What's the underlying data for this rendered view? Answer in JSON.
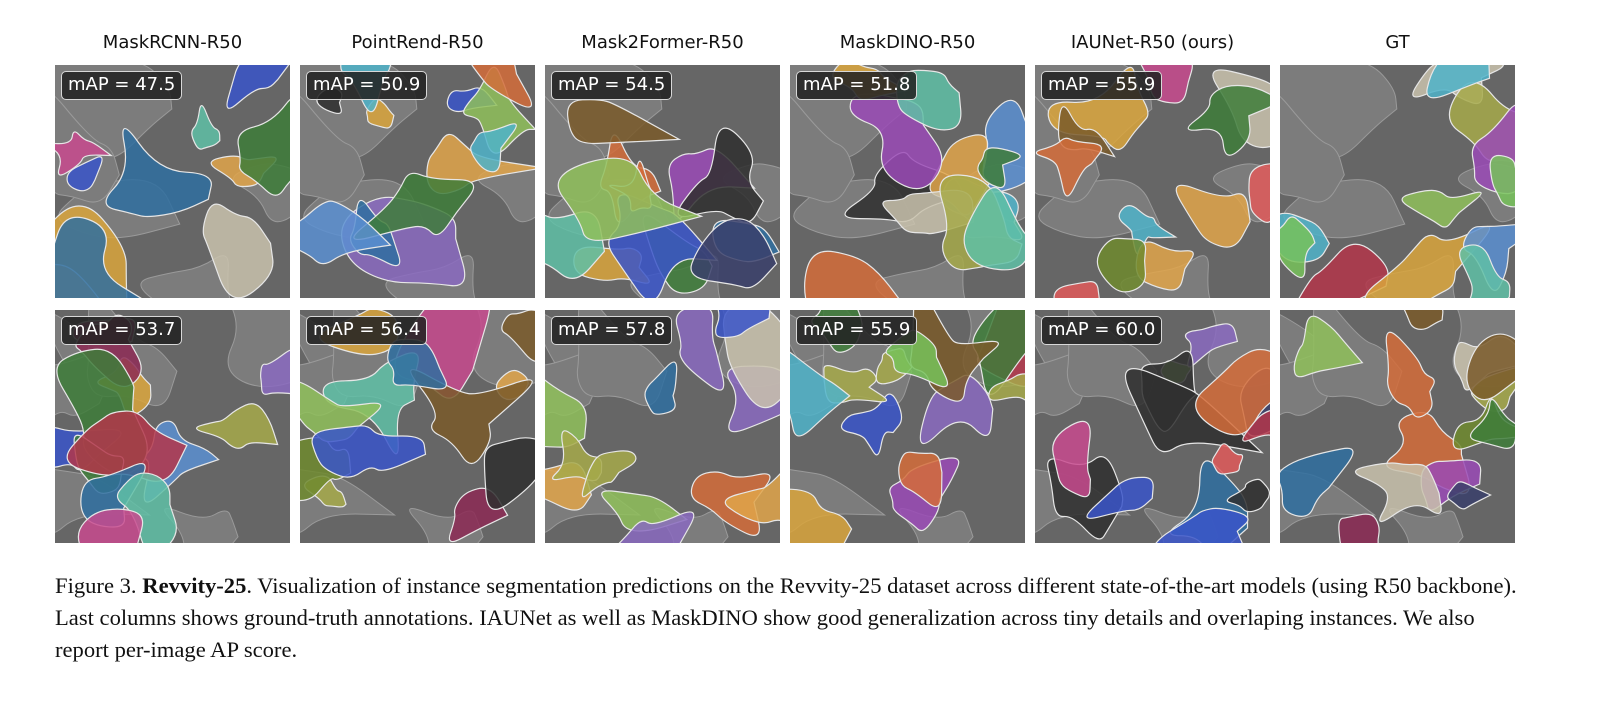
{
  "figure": {
    "columns": [
      {
        "title": "MaskRCNN-R50",
        "scores": [
          "mAP = 47.5",
          "mAP = 53.7"
        ]
      },
      {
        "title": "PointRend-R50",
        "scores": [
          "mAP = 50.9",
          "mAP = 56.4"
        ]
      },
      {
        "title": "Mask2Former-R50",
        "scores": [
          "mAP = 54.5",
          "mAP = 57.8"
        ]
      },
      {
        "title": "MaskDINO-R50",
        "scores": [
          "mAP = 51.8",
          "mAP = 55.9"
        ]
      },
      {
        "title": "IAUNet-R50 (ours)",
        "scores": [
          "mAP = 55.9",
          "mAP = 60.0"
        ]
      },
      {
        "title": "GT",
        "scores": []
      }
    ],
    "palette": [
      "#8fbf5a",
      "#d9a53c",
      "#3a55c9",
      "#e0a44a",
      "#5fc0a6",
      "#c9c2ad",
      "#c84a8e",
      "#8c2a55",
      "#2f6fa0",
      "#6f8a2e",
      "#9a4ab6",
      "#4fb3c9",
      "#3e7d3a",
      "#b3364a",
      "#7a5a2a",
      "#3a3f6b",
      "#d46c3a",
      "#a6a94a",
      "#5a8fd1",
      "#2f2f2f",
      "#e05a5a",
      "#77c25a",
      "#8a6ac0",
      "#c97fb0"
    ]
  },
  "caption": {
    "label": "Figure 3.",
    "title": "Revvity-25",
    "text": ". Visualization of instance segmentation predictions on the Revvity-25 dataset across different state-of-the-art models (using R50 backbone). Last columns shows ground-truth annotations. IAUNet as well as MaskDINO show good generalization across tiny details and overlaping instances. We also report per-image AP score."
  }
}
